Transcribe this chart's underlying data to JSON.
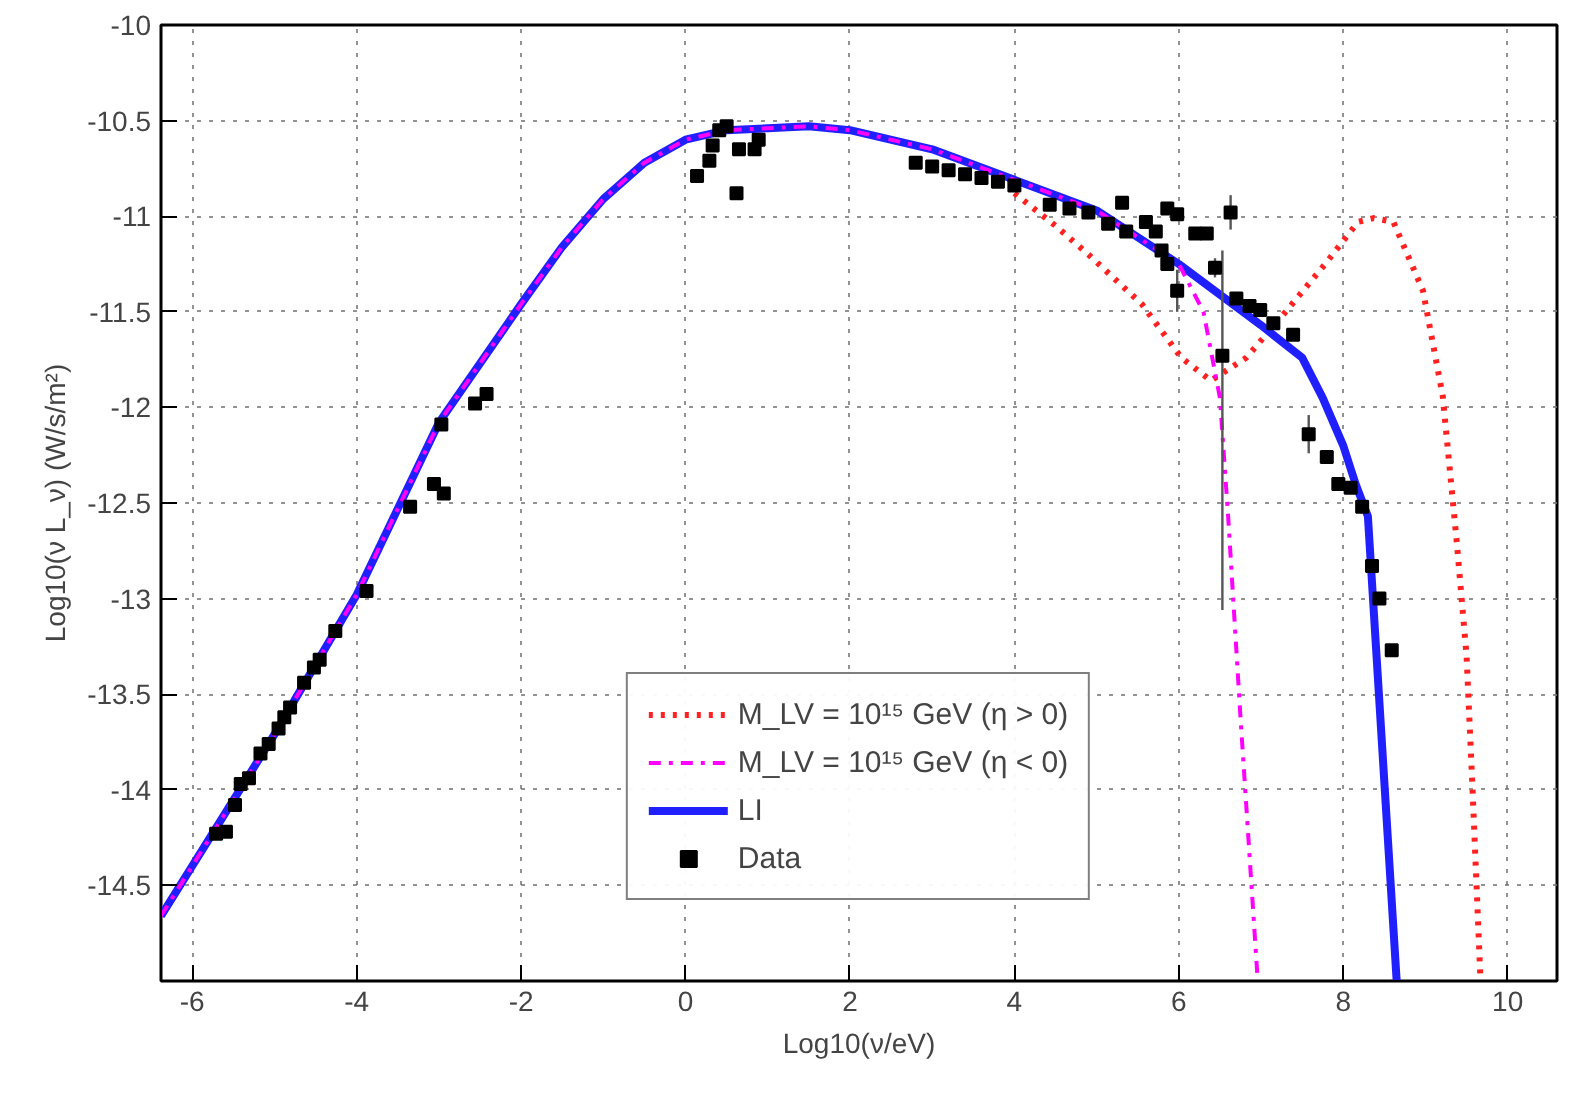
{
  "chart_data": {
    "type": "line",
    "xlabel": "Log10(ν/eV)",
    "ylabel": "Log10(ν L_ν) (W/s/m²)",
    "xlim": [
      -6.38,
      10.6
    ],
    "ylim": [
      -15,
      -10
    ],
    "xticks": [
      -6,
      -4,
      -2,
      0,
      2,
      4,
      6,
      8,
      10
    ],
    "yticks": [
      -14.5,
      -14,
      -13.5,
      -13,
      -12.5,
      -12,
      -11.5,
      -11,
      -10.5,
      -10
    ],
    "grid": true,
    "legend": "bottom",
    "series": [
      {
        "name": "M_LV = 10¹⁵ GeV (η > 0)",
        "color": "#ff2020",
        "line_style": "dotted",
        "x": [
          4.0,
          4.5,
          4.9,
          5.55,
          6.03,
          6.39,
          6.82,
          7.3,
          7.78,
          8.18,
          8.37,
          8.61,
          8.97,
          9.21,
          9.38,
          9.5,
          9.57,
          9.67
        ],
        "values": [
          -10.88,
          -11.05,
          -11.2,
          -11.46,
          -11.74,
          -11.86,
          -11.74,
          -11.5,
          -11.25,
          -11.03,
          -11.01,
          -11.03,
          -11.39,
          -11.94,
          -12.7,
          -13.3,
          -13.97,
          -15
        ]
      },
      {
        "name": "M_LV = 10¹⁵ GeV (η < 0)",
        "color": "#ff00ff",
        "line_style": "dashdot",
        "x": [
          -6.38,
          -5,
          -4,
          -3,
          -2,
          -1.5,
          -1,
          -0.5,
          0,
          0.5,
          1,
          1.5,
          2,
          3,
          4,
          5,
          6,
          6.3,
          6.5,
          6.6,
          6.75,
          6.96
        ],
        "values": [
          -14.66,
          -13.71,
          -12.98,
          -12.08,
          -11.46,
          -11.16,
          -10.91,
          -10.72,
          -10.6,
          -10.55,
          -10.54,
          -10.53,
          -10.55,
          -10.65,
          -10.81,
          -10.97,
          -11.25,
          -11.5,
          -11.95,
          -12.57,
          -13.62,
          -15
        ]
      },
      {
        "name": "LI",
        "color": "#2020ff",
        "line_style": "solid",
        "x": [
          -6.38,
          -5,
          -4,
          -3,
          -2,
          -1.5,
          -1,
          -0.5,
          0,
          0.5,
          1,
          1.5,
          2,
          3,
          4,
          5,
          6,
          7,
          7.5,
          7.75,
          8,
          8.15,
          8.3,
          8.5,
          8.65
        ],
        "values": [
          -14.66,
          -13.71,
          -12.98,
          -12.08,
          -11.46,
          -11.16,
          -10.91,
          -10.72,
          -10.6,
          -10.55,
          -10.54,
          -10.53,
          -10.55,
          -10.65,
          -10.81,
          -10.97,
          -11.25,
          -11.57,
          -11.74,
          -11.95,
          -12.2,
          -12.4,
          -12.57,
          -13.96,
          -15
        ]
      },
      {
        "name": "Data",
        "type": "scatter",
        "marker": "square",
        "color": "#000000",
        "x": [
          -5.71,
          -5.59,
          -5.48,
          -5.41,
          -5.31,
          -5.17,
          -5.07,
          -4.95,
          -4.88,
          -4.81,
          -4.64,
          -4.52,
          -4.45,
          -4.26,
          -3.88,
          -3.35,
          -3.06,
          -2.94,
          -2.97,
          -2.56,
          -2.42,
          0.14,
          0.29,
          0.33,
          0.41,
          0.5,
          0.65,
          0.62,
          0.84,
          0.89,
          2.8,
          3.0,
          3.2,
          3.4,
          3.6,
          3.8,
          4.0,
          4.43,
          4.67,
          4.9,
          5.14,
          5.31,
          5.36,
          5.6,
          5.72,
          5.79,
          5.86,
          5.98,
          5.86,
          5.98,
          6.2,
          6.34,
          6.63,
          6.44,
          6.53,
          6.7,
          6.86,
          6.99,
          7.15,
          7.39,
          7.58,
          7.8,
          7.94,
          8.09,
          8.23,
          8.35,
          8.44,
          8.59
        ],
        "values": [
          -14.23,
          -14.22,
          -14.08,
          -13.97,
          -13.94,
          -13.81,
          -13.76,
          -13.68,
          -13.62,
          -13.57,
          -13.44,
          -13.36,
          -13.32,
          -13.17,
          -12.96,
          -12.52,
          -12.4,
          -12.45,
          -12.09,
          -11.98,
          -11.93,
          -10.79,
          -10.71,
          -10.63,
          -10.55,
          -10.53,
          -10.65,
          -10.88,
          -10.65,
          -10.6,
          -10.72,
          -10.74,
          -10.76,
          -10.78,
          -10.8,
          -10.82,
          -10.84,
          -10.94,
          -10.96,
          -10.98,
          -11.04,
          -10.93,
          -11.08,
          -11.03,
          -11.08,
          -11.18,
          -10.96,
          -10.99,
          -11.25,
          -11.39,
          -11.09,
          -11.09,
          -10.98,
          -11.27,
          -11.73,
          -11.43,
          -11.47,
          -11.49,
          -11.56,
          -11.62,
          -12.14,
          -12.26,
          -12.4,
          -12.42,
          -12.52,
          -12.83,
          -13.0,
          -13.27
        ],
        "errors": [
          null,
          null,
          null,
          null,
          null,
          null,
          null,
          null,
          null,
          null,
          null,
          null,
          null,
          null,
          null,
          null,
          null,
          null,
          null,
          null,
          null,
          null,
          null,
          null,
          null,
          null,
          null,
          null,
          null,
          null,
          null,
          null,
          null,
          null,
          null,
          null,
          null,
          null,
          null,
          null,
          null,
          null,
          null,
          null,
          null,
          null,
          null,
          null,
          null,
          0.11,
          null,
          null,
          0.09,
          0.05,
          [
            -13.06,
            -11.18
          ],
          null,
          null,
          null,
          null,
          null,
          0.1,
          null,
          null,
          null,
          null,
          null,
          null,
          null
        ]
      }
    ]
  }
}
